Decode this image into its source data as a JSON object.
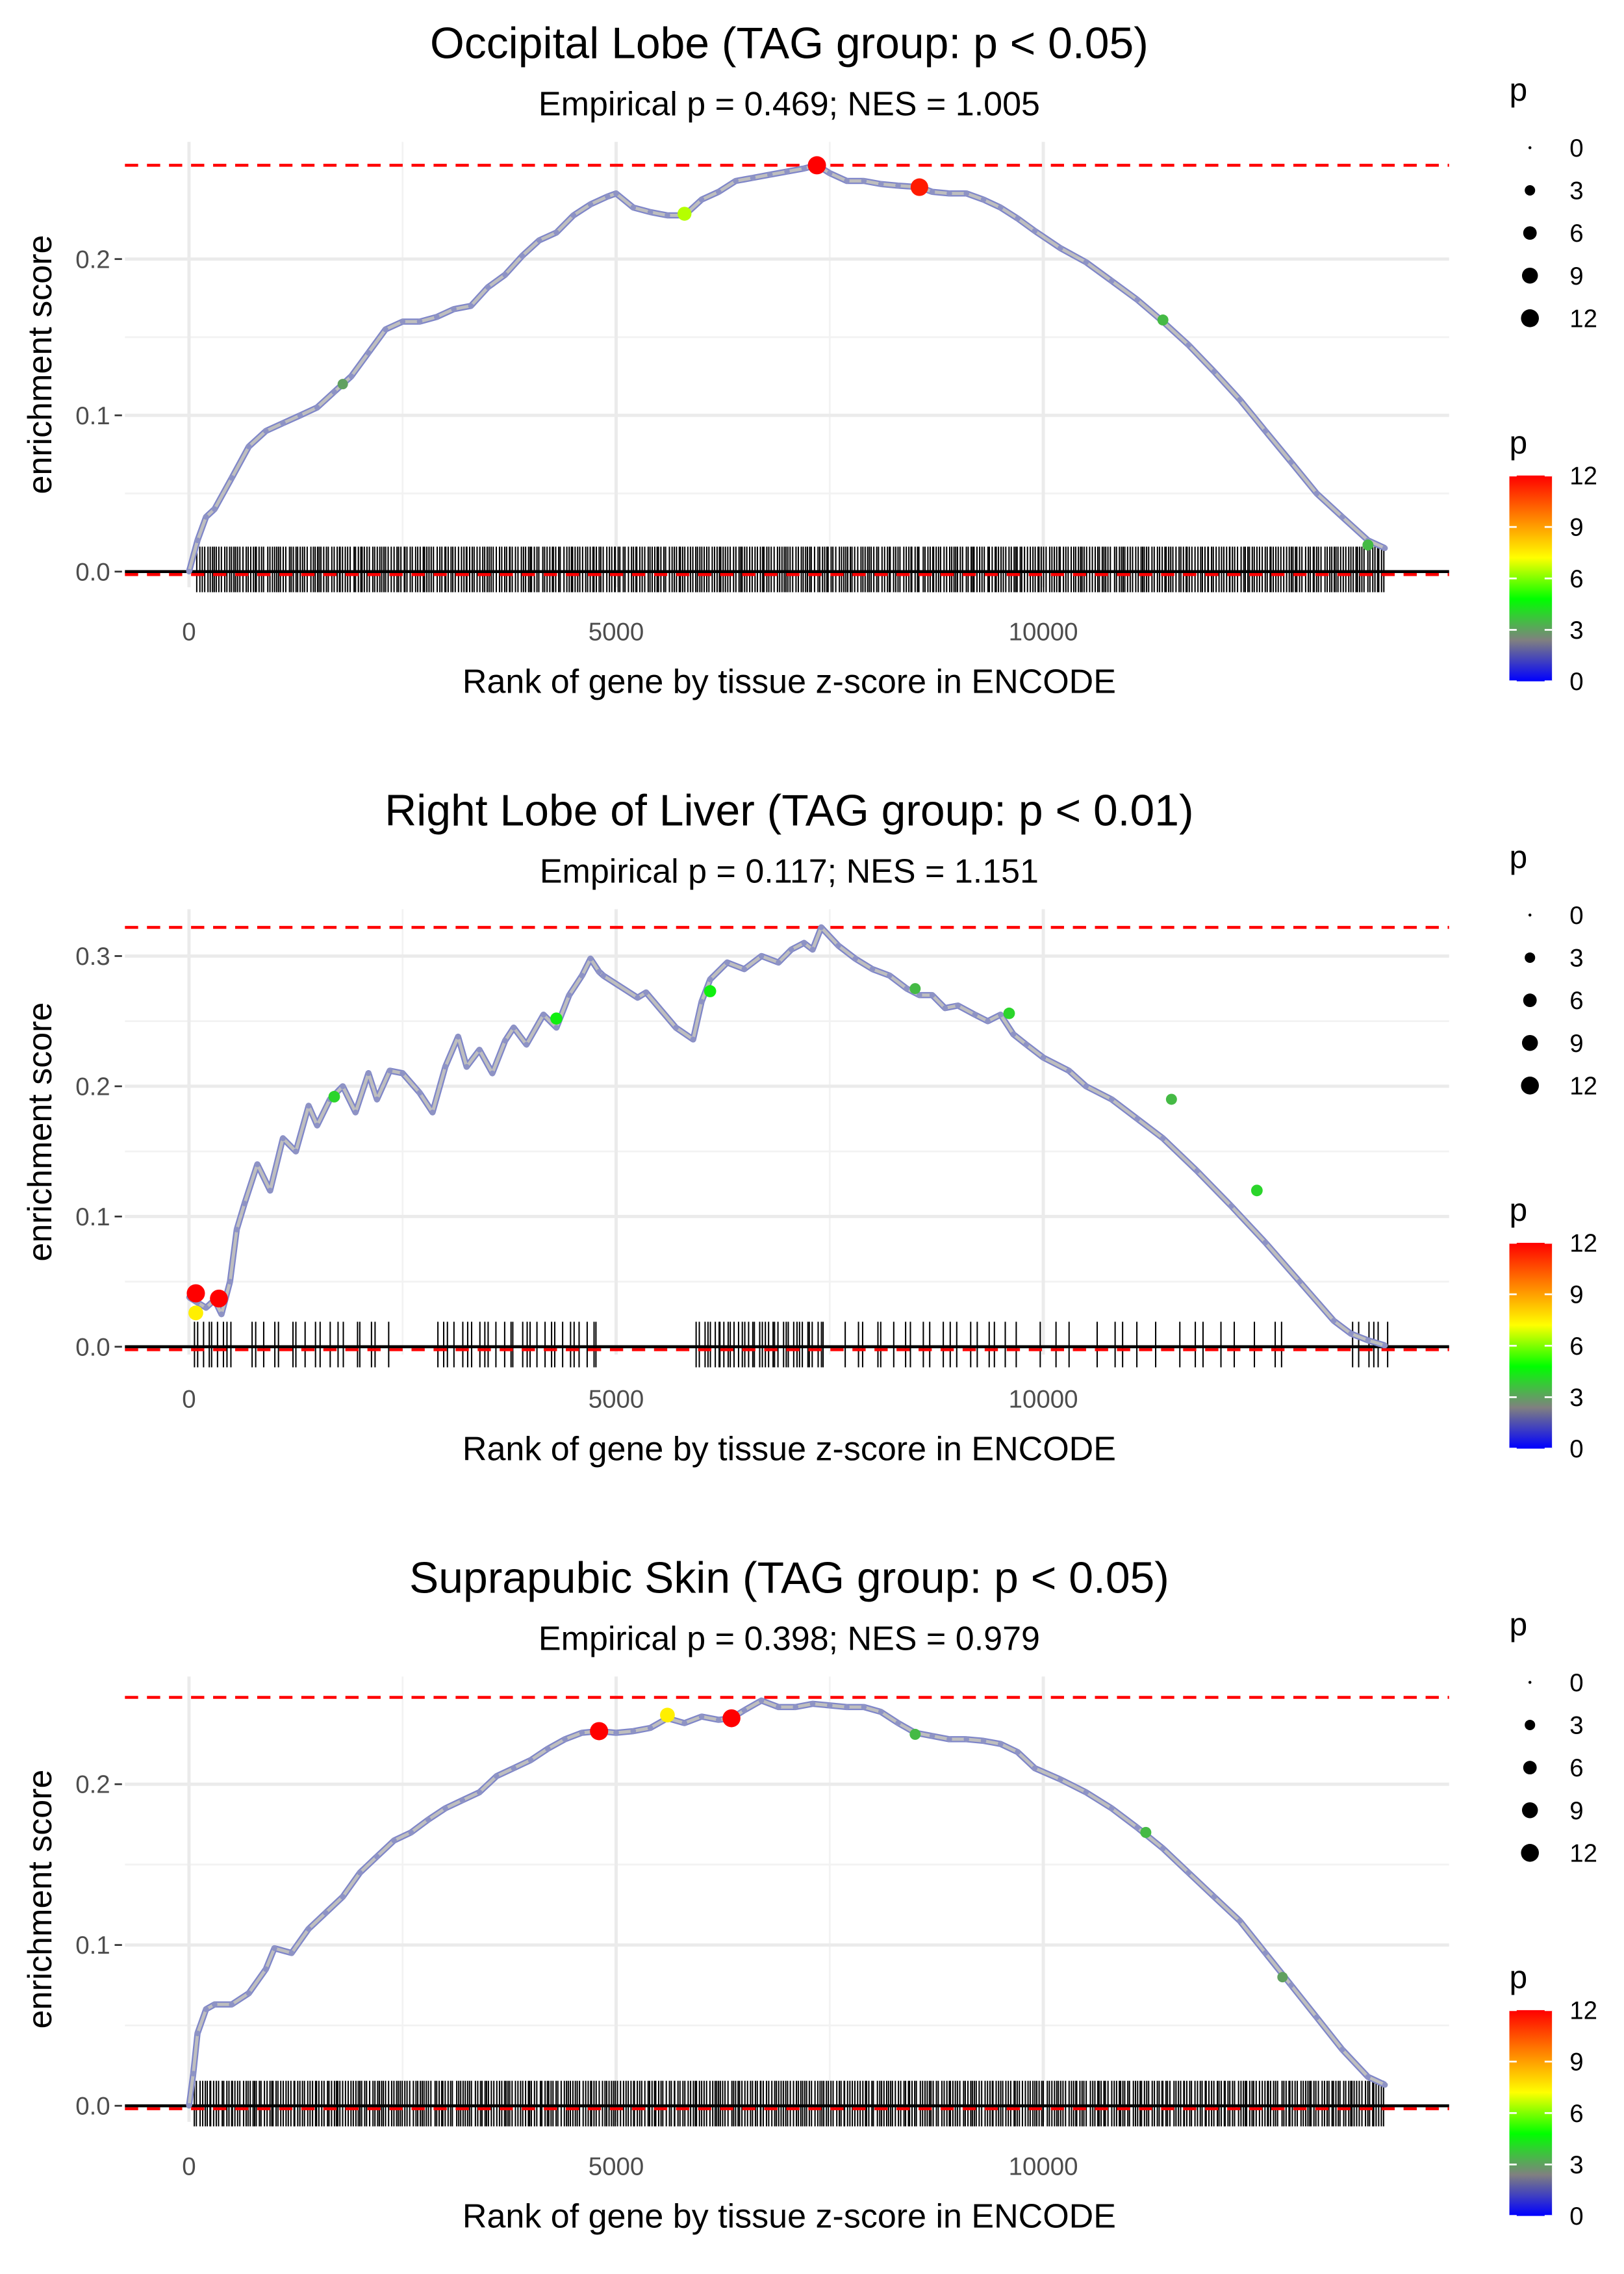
{
  "figure": {
    "colors": {
      "es_line": "#bebebe",
      "max_line": "#ff0000",
      "zero_line": "#000000",
      "rug": "#000000",
      "gradient": [
        "#0000ff",
        "#808080",
        "#00ff00",
        "#ffff00",
        "#ff7f00",
        "#ff0000"
      ]
    }
  },
  "chart_data": [
    {
      "type": "line",
      "title": "Occipital Lobe (TAG group: p < 0.05)",
      "subtitle": "Empirical p = 0.469; NES = 1.005",
      "xlabel": "Rank of gene by tissue z-score in ENCODE",
      "ylabel": "enrichment score",
      "xlim": [
        -750,
        14750
      ],
      "ylim": [
        -0.01,
        0.275
      ],
      "x_ticks": [
        0,
        5000,
        10000
      ],
      "x_tick_labels": [
        "0",
        "5000",
        "10000"
      ],
      "y_ticks": [
        0.0,
        0.1,
        0.2
      ],
      "y_tick_labels": [
        "0.0",
        "0.1",
        "0.2"
      ],
      "max_es": 0.26,
      "legend_size": {
        "title": "p",
        "labels": [
          "0",
          "3",
          "6",
          "9",
          "12"
        ],
        "values": [
          0,
          3,
          6,
          9,
          12
        ]
      },
      "legend_color": {
        "title": "p",
        "labels": [
          "12",
          "9",
          "6",
          "3",
          "0"
        ],
        "values": [
          12,
          9,
          6,
          3,
          0
        ]
      },
      "series": [
        {
          "name": "enrichment score",
          "x": [
            0,
            100,
            200,
            300,
            500,
            700,
            900,
            1100,
            1300,
            1500,
            1700,
            1900,
            2100,
            2300,
            2500,
            2700,
            2900,
            3100,
            3300,
            3500,
            3700,
            3900,
            4100,
            4300,
            4500,
            4700,
            4900,
            5000,
            5200,
            5400,
            5600,
            5800,
            6000,
            6200,
            6400,
            6600,
            6800,
            7000,
            7200,
            7350,
            7500,
            7700,
            7900,
            8100,
            8300,
            8550,
            8700,
            8900,
            9100,
            9300,
            9500,
            9700,
            9900,
            10200,
            10500,
            10800,
            11100,
            11400,
            11700,
            12000,
            12300,
            12600,
            12900,
            13200,
            13500,
            13800,
            14000
          ],
          "y": [
            0.0,
            0.02,
            0.035,
            0.04,
            0.06,
            0.08,
            0.09,
            0.095,
            0.1,
            0.105,
            0.115,
            0.125,
            0.14,
            0.155,
            0.16,
            0.16,
            0.163,
            0.168,
            0.17,
            0.182,
            0.19,
            0.202,
            0.212,
            0.217,
            0.228,
            0.235,
            0.24,
            0.242,
            0.233,
            0.23,
            0.228,
            0.228,
            0.238,
            0.243,
            0.25,
            0.252,
            0.254,
            0.256,
            0.258,
            0.26,
            0.255,
            0.25,
            0.25,
            0.248,
            0.247,
            0.246,
            0.243,
            0.242,
            0.242,
            0.238,
            0.233,
            0.226,
            0.218,
            0.207,
            0.198,
            0.186,
            0.174,
            0.16,
            0.145,
            0.128,
            0.11,
            0.09,
            0.07,
            0.05,
            0.035,
            0.02,
            0.015
          ]
        }
      ],
      "points": [
        {
          "x": 7350,
          "y": 0.26,
          "p": 12.5
        },
        {
          "x": 8550,
          "y": 0.246,
          "p": 11.5
        },
        {
          "x": 5800,
          "y": 0.229,
          "p": 6.5
        },
        {
          "x": 11400,
          "y": 0.161,
          "p": 3.5
        },
        {
          "x": 13800,
          "y": 0.017,
          "p": 3.5
        },
        {
          "x": 1800,
          "y": 0.12,
          "p": 3.0
        }
      ],
      "rug": [
        {
          "from": 100,
          "to": 14000,
          "step": 28
        }
      ]
    },
    {
      "type": "line",
      "title": "Right Lobe of Liver (TAG group: p < 0.01)",
      "subtitle": "Empirical p = 0.117; NES = 1.151",
      "xlabel": "Rank of gene by tissue z-score in ENCODE",
      "ylabel": "enrichment score",
      "xlim": [
        -750,
        14750
      ],
      "ylim": [
        -0.006,
        0.336
      ],
      "x_ticks": [
        0,
        5000,
        10000
      ],
      "x_tick_labels": [
        "0",
        "5000",
        "10000"
      ],
      "y_ticks": [
        0.0,
        0.1,
        0.2,
        0.3
      ],
      "y_tick_labels": [
        "0.0",
        "0.1",
        "0.2",
        "0.3"
      ],
      "max_es": 0.322,
      "legend_size": {
        "title": "p",
        "labels": [
          "0",
          "3",
          "6",
          "9",
          "12"
        ],
        "values": [
          0,
          3,
          6,
          9,
          12
        ]
      },
      "legend_color": {
        "title": "p",
        "labels": [
          "12",
          "9",
          "6",
          "3",
          "0"
        ],
        "values": [
          12,
          9,
          6,
          3,
          0
        ]
      },
      "series": [
        {
          "name": "enrichment score",
          "x": [
            0,
            100,
            200,
            300,
            380,
            480,
            560,
            650,
            800,
            950,
            1100,
            1250,
            1400,
            1500,
            1650,
            1800,
            1950,
            2100,
            2200,
            2350,
            2500,
            2700,
            2850,
            3000,
            3150,
            3250,
            3400,
            3550,
            3700,
            3800,
            3950,
            4150,
            4300,
            4450,
            4600,
            4700,
            4800,
            4850,
            5250,
            5350,
            5700,
            5900,
            6000,
            6100,
            6300,
            6500,
            6700,
            6900,
            7050,
            7200,
            7300,
            7400,
            7600,
            7800,
            8000,
            8200,
            8400,
            8550,
            8700,
            8850,
            9000,
            9200,
            9350,
            9500,
            9650,
            9800,
            10000,
            10300,
            10500,
            10800,
            11100,
            11400,
            11800,
            12200,
            12600,
            13000,
            13400,
            13600,
            13800,
            14000
          ],
          "y": [
            0.038,
            0.034,
            0.03,
            0.036,
            0.025,
            0.05,
            0.09,
            0.11,
            0.14,
            0.12,
            0.16,
            0.15,
            0.185,
            0.17,
            0.19,
            0.2,
            0.18,
            0.21,
            0.19,
            0.212,
            0.21,
            0.195,
            0.18,
            0.215,
            0.238,
            0.215,
            0.228,
            0.21,
            0.235,
            0.245,
            0.232,
            0.255,
            0.245,
            0.27,
            0.285,
            0.298,
            0.288,
            0.285,
            0.268,
            0.272,
            0.245,
            0.236,
            0.265,
            0.282,
            0.295,
            0.29,
            0.3,
            0.295,
            0.305,
            0.31,
            0.305,
            0.322,
            0.308,
            0.298,
            0.29,
            0.285,
            0.275,
            0.27,
            0.27,
            0.26,
            0.262,
            0.255,
            0.25,
            0.255,
            0.24,
            0.232,
            0.222,
            0.212,
            0.2,
            0.19,
            0.175,
            0.16,
            0.135,
            0.108,
            0.08,
            0.05,
            0.02,
            0.01,
            0.005,
            0.001
          ]
        }
      ],
      "points": [
        {
          "x": 80,
          "y": 0.041,
          "p": 12.5
        },
        {
          "x": 350,
          "y": 0.037,
          "p": 12.0
        },
        {
          "x": 80,
          "y": 0.026,
          "p": 7.5
        },
        {
          "x": 1700,
          "y": 0.192,
          "p": 4.0
        },
        {
          "x": 4300,
          "y": 0.252,
          "p": 4.5
        },
        {
          "x": 6100,
          "y": 0.273,
          "p": 4.5
        },
        {
          "x": 9600,
          "y": 0.256,
          "p": 4.0
        },
        {
          "x": 11500,
          "y": 0.19,
          "p": 3.5
        },
        {
          "x": 12500,
          "y": 0.12,
          "p": 4.0
        },
        {
          "x": 8500,
          "y": 0.275,
          "p": 3.5
        }
      ],
      "rug": [
        {
          "from": 60,
          "to": 500,
          "step": 55
        },
        {
          "from": 700,
          "to": 2400,
          "step": 95
        },
        {
          "from": 2900,
          "to": 4800,
          "step": 70
        },
        {
          "from": 5950,
          "to": 7450,
          "step": 40
        },
        {
          "from": 7700,
          "to": 9700,
          "step": 110
        },
        {
          "from": 10000,
          "to": 12900,
          "step": 190
        },
        {
          "from": 13650,
          "to": 14000,
          "step": 70
        }
      ]
    },
    {
      "type": "line",
      "title": "Suprapubic Skin (TAG group: p < 0.05)",
      "subtitle": "Empirical p = 0.398; NES = 0.979",
      "xlabel": "Rank of gene by tissue z-score in ENCODE",
      "ylabel": "enrichment score",
      "xlim": [
        -750,
        14750
      ],
      "ylim": [
        -0.01,
        0.267
      ],
      "x_ticks": [
        0,
        5000,
        10000
      ],
      "x_tick_labels": [
        "0",
        "5000",
        "10000"
      ],
      "y_ticks": [
        0.0,
        0.1,
        0.2
      ],
      "y_tick_labels": [
        "0.0",
        "0.1",
        "0.2"
      ],
      "max_es": 0.254,
      "legend_size": {
        "title": "p",
        "labels": [
          "0",
          "3",
          "6",
          "9",
          "12"
        ],
        "values": [
          0,
          3,
          6,
          9,
          12
        ]
      },
      "legend_color": {
        "title": "p",
        "labels": [
          "12",
          "9",
          "6",
          "3",
          "0"
        ],
        "values": [
          12,
          9,
          6,
          3,
          0
        ]
      },
      "series": [
        {
          "name": "enrichment score",
          "x": [
            0,
            50,
            100,
            200,
            300,
            500,
            700,
            900,
            1000,
            1200,
            1400,
            1600,
            1800,
            2000,
            2200,
            2400,
            2600,
            2800,
            3000,
            3200,
            3400,
            3600,
            3800,
            4000,
            4200,
            4400,
            4600,
            4800,
            5000,
            5200,
            5400,
            5600,
            5800,
            6000,
            6200,
            6350,
            6500,
            6700,
            6900,
            7100,
            7300,
            7500,
            7700,
            7900,
            8100,
            8300,
            8500,
            8700,
            8900,
            9100,
            9300,
            9500,
            9700,
            9900,
            10200,
            10500,
            10800,
            11100,
            11400,
            11700,
            12000,
            12300,
            12600,
            12900,
            13200,
            13500,
            13800,
            14000
          ],
          "y": [
            0.0,
            0.02,
            0.045,
            0.06,
            0.063,
            0.063,
            0.07,
            0.085,
            0.098,
            0.095,
            0.11,
            0.12,
            0.13,
            0.145,
            0.155,
            0.165,
            0.17,
            0.178,
            0.185,
            0.19,
            0.195,
            0.205,
            0.21,
            0.215,
            0.222,
            0.228,
            0.232,
            0.233,
            0.232,
            0.233,
            0.235,
            0.241,
            0.238,
            0.242,
            0.24,
            0.241,
            0.246,
            0.252,
            0.248,
            0.248,
            0.25,
            0.249,
            0.248,
            0.248,
            0.245,
            0.238,
            0.232,
            0.23,
            0.228,
            0.228,
            0.227,
            0.225,
            0.22,
            0.21,
            0.203,
            0.195,
            0.185,
            0.173,
            0.16,
            0.145,
            0.13,
            0.115,
            0.095,
            0.075,
            0.055,
            0.035,
            0.018,
            0.013
          ]
        }
      ],
      "points": [
        {
          "x": 4800,
          "y": 0.233,
          "p": 12.5
        },
        {
          "x": 6350,
          "y": 0.241,
          "p": 12.0
        },
        {
          "x": 5600,
          "y": 0.243,
          "p": 7.5
        },
        {
          "x": 11200,
          "y": 0.17,
          "p": 3.5
        },
        {
          "x": 8500,
          "y": 0.231,
          "p": 3.5
        },
        {
          "x": 12800,
          "y": 0.08,
          "p": 3.0
        }
      ],
      "rug": [
        {
          "from": 70,
          "to": 14000,
          "step": 28
        }
      ]
    }
  ]
}
